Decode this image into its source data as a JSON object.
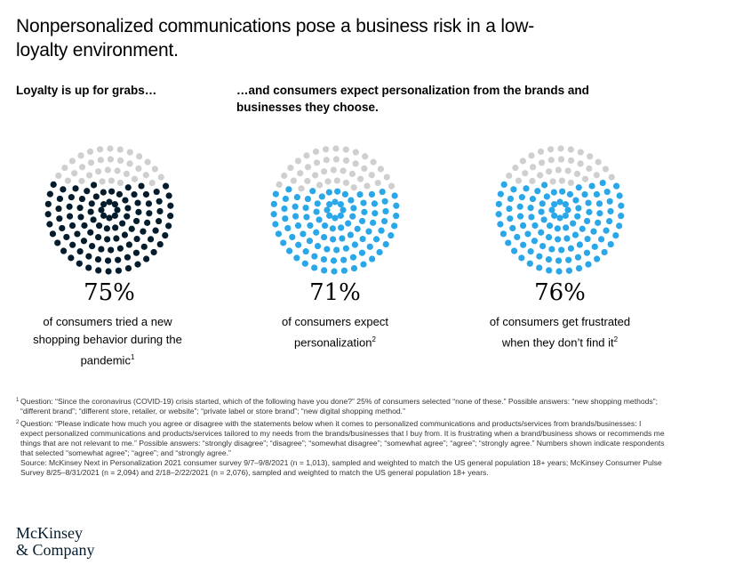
{
  "title": "Nonpersonalized communications pose a business risk in a low-loyalty environment.",
  "subheads": {
    "left": "Loyalty is up for grabs…",
    "right": "…and consumers expect personalization from the brands and businesses they choose."
  },
  "colors": {
    "gray": "#cfcfcf",
    "navy": "#051c2c",
    "blue": "#2aa7e8"
  },
  "chart_data": [
    {
      "type": "pie",
      "style": "dot-circle",
      "value": 75,
      "label": "75%",
      "description": "of consumers tried a new shopping behavior during the pandemic",
      "footnote_ref": "1",
      "color": "navy"
    },
    {
      "type": "pie",
      "style": "dot-circle",
      "value": 71,
      "label": "71%",
      "description": "of consumers expect personalization",
      "footnote_ref": "2",
      "color": "blue"
    },
    {
      "type": "pie",
      "style": "dot-circle",
      "value": 76,
      "label": "76%",
      "description": "of consumers get frustrated when they don’t find it",
      "footnote_ref": "2",
      "color": "blue"
    }
  ],
  "footnotes": [
    {
      "mark": "1",
      "text": "Question: “Since the coronavirus (COVID-19) crisis started, which of the following have you done?” 25% of consumers selected “none of these.” Possible answers: “new shopping methods”; “different brand”; “different store, retailer, or website”; “private label or store brand”; “new digital shopping method.”"
    },
    {
      "mark": "2",
      "text": "Question: “Please indicate how much you agree or disagree with the statements below when it comes to personalized communications and products/services from brands/businesses: I expect personalized communications and products/services tailored to my needs from the brands/businesses that I buy from. It is frustrating when a brand/business shows or recommends me things that are not relevant to me.” Possible answers: “strongly disagree”; “disagree”; “somewhat disagree”; “somewhat agree”; “agree”; “strongly agree.” Numbers shown indicate respondents that selected “somewhat agree”; “agree”; and “strongly agree.”"
    }
  ],
  "source": "Source: McKinsey Next in Personalization 2021 consumer survey 9/7–9/8/2021 (n = 1,013), sampled and weighted to match the US general population 18+ years; McKinsey Consumer Pulse Survey 8/25–8/31/2021 (n = 2,094) and 2/18–2/22/2021 (n = 2,076), sampled and weighted to match the US general population 18+ years.",
  "logo": {
    "line1": "McKinsey",
    "line2": "& Company"
  }
}
